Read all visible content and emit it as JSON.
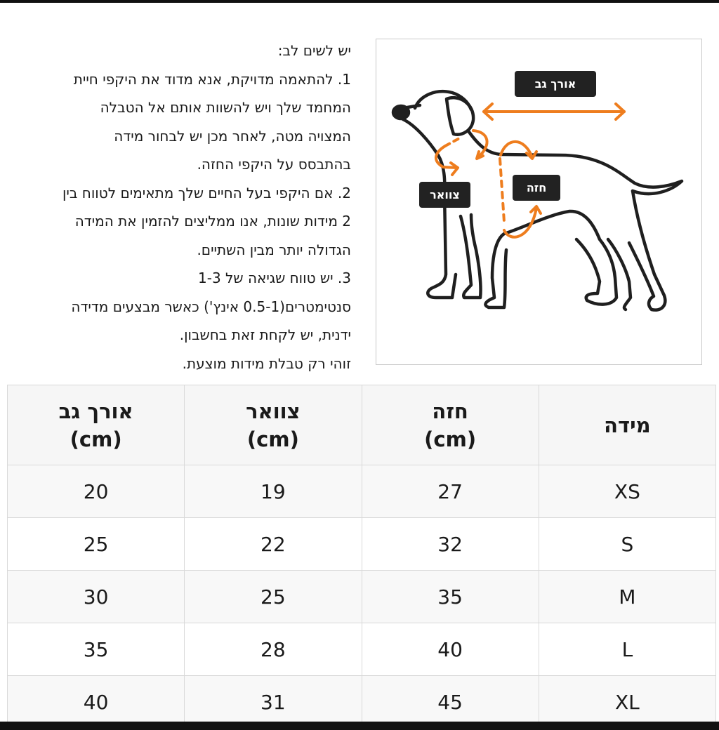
{
  "notes": {
    "lines": [
      "יש לשים לב:",
      "1. להתאמה מדויקת, אנא מדוד את היקפי חיית",
      "המחמד שלך ויש להשוות אותם אל הטבלה",
      "המצויה מטה, לאחר מכן יש לבחור מידה",
      "בהתבסס על היקפי החזה.",
      "2. אם היקפי בעל החיים שלך מתאימים לטווח בין",
      "2 מידות שונות, אנו ממליצים להזמין את המידה",
      "הגדולה יותר מבין השתיים.",
      "3. יש טווח שגיאה של 1-3",
      "סנטימטרים(0.5-1 אינץ') כאשר מבצעים מדידה",
      "ידנית, יש לקחת זאת בחשבון.",
      "זוהי רק טבלת מידות מוצעת."
    ]
  },
  "diagram": {
    "back_label": "אורך גב",
    "neck_label": "צוואר",
    "chest_label": "חזה",
    "accent_color": "#ee7d1e",
    "label_bg": "#222222"
  },
  "table": {
    "headers": [
      {
        "name": "מידה",
        "unit": ""
      },
      {
        "name": "חזה",
        "unit": "(cm)"
      },
      {
        "name": "צוואר",
        "unit": "(cm)"
      },
      {
        "name": "אורך גב",
        "unit": "(cm)"
      }
    ],
    "rows": [
      [
        "XS",
        "27",
        "19",
        "20"
      ],
      [
        "S",
        "32",
        "22",
        "25"
      ],
      [
        "M",
        "35",
        "25",
        "30"
      ],
      [
        "L",
        "40",
        "28",
        "35"
      ],
      [
        "XL",
        "45",
        "31",
        "40"
      ]
    ]
  }
}
